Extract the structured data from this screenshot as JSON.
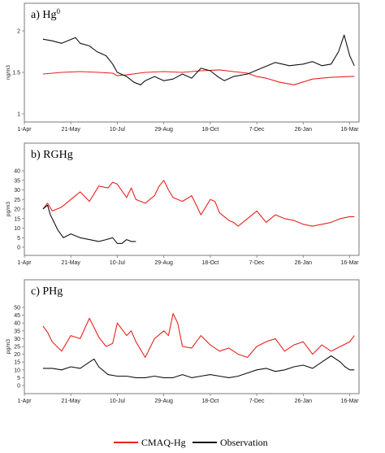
{
  "colors": {
    "model": "#e8231e",
    "observation": "#111111",
    "axis": "#7a7a7a"
  },
  "legend": {
    "model_label": "CMAQ-Hg",
    "observation_label": "Observation"
  },
  "x_tick_labels": [
    "1-Apr",
    "21-May",
    "10-Jul",
    "29-Aug",
    "18-Oct",
    "7-Dec",
    "26-Jan",
    "16-Mar"
  ],
  "chart_data": [
    {
      "type": "line",
      "title": "a) Hg",
      "title_sup": "0",
      "ylabel": "ng/m3",
      "xlim": [
        0,
        360
      ],
      "ylim": [
        1,
        2
      ],
      "yticks": [
        "1",
        "1.5",
        "2"
      ],
      "x_tick_values": [
        0,
        50,
        100,
        150,
        200,
        250,
        300,
        350
      ],
      "series": [
        {
          "name": "CMAQ-Hg",
          "x": [
            20,
            40,
            60,
            80,
            95,
            100,
            110,
            130,
            150,
            170,
            190,
            210,
            225,
            240,
            250,
            260,
            275,
            290,
            310,
            330,
            350,
            355
          ],
          "y": [
            1.48,
            1.5,
            1.51,
            1.5,
            1.49,
            1.46,
            1.47,
            1.5,
            1.51,
            1.5,
            1.52,
            1.53,
            1.51,
            1.49,
            1.45,
            1.43,
            1.38,
            1.35,
            1.42,
            1.44,
            1.45,
            1.45
          ]
        },
        {
          "name": "Observation",
          "x": [
            20,
            30,
            40,
            55,
            60,
            70,
            78,
            88,
            95,
            100,
            110,
            118,
            125,
            130,
            140,
            150,
            160,
            170,
            180,
            190,
            200,
            208,
            215,
            225,
            240,
            255,
            270,
            285,
            300,
            310,
            320,
            330,
            338,
            344,
            350,
            355
          ],
          "y": [
            1.9,
            1.88,
            1.85,
            1.92,
            1.85,
            1.82,
            1.75,
            1.7,
            1.6,
            1.5,
            1.45,
            1.38,
            1.35,
            1.4,
            1.45,
            1.4,
            1.42,
            1.48,
            1.43,
            1.55,
            1.52,
            1.45,
            1.4,
            1.45,
            1.48,
            1.55,
            1.62,
            1.58,
            1.6,
            1.63,
            1.58,
            1.6,
            1.75,
            1.95,
            1.7,
            1.58
          ]
        }
      ]
    },
    {
      "type": "line",
      "title": "b) RGHg",
      "ylabel": "pg/m3",
      "xlim": [
        0,
        360
      ],
      "ylim": [
        0,
        40
      ],
      "yticks": [
        "0",
        "5",
        "10",
        "15",
        "20",
        "25",
        "30",
        "35",
        "40"
      ],
      "x_tick_values": [
        0,
        50,
        100,
        150,
        200,
        250,
        300,
        350
      ],
      "series": [
        {
          "name": "CMAQ-Hg",
          "x": [
            20,
            25,
            30,
            40,
            50,
            60,
            70,
            80,
            90,
            95,
            100,
            110,
            115,
            120,
            130,
            140,
            145,
            150,
            155,
            160,
            170,
            180,
            190,
            200,
            205,
            210,
            220,
            225,
            230,
            240,
            250,
            260,
            270,
            280,
            290,
            300,
            310,
            320,
            330,
            340,
            350,
            355
          ],
          "y": [
            20,
            23,
            19,
            21,
            25,
            29,
            24,
            32,
            31,
            34,
            33,
            26,
            31,
            25,
            23,
            27,
            32,
            35,
            30,
            26,
            24,
            27,
            17,
            25,
            24,
            18,
            14,
            13,
            11,
            15,
            19,
            13,
            17,
            15,
            14,
            12,
            11,
            12,
            13,
            15,
            16,
            16
          ]
        },
        {
          "name": "Observation",
          "x": [
            20,
            25,
            28,
            32,
            36,
            42,
            50,
            60,
            70,
            80,
            88,
            95,
            100,
            105,
            110,
            115,
            120
          ],
          "y": [
            20,
            22,
            17,
            13,
            9,
            5,
            7,
            5,
            4,
            3,
            4,
            5,
            2,
            2,
            4,
            3,
            3
          ]
        }
      ]
    },
    {
      "type": "line",
      "title": "c) PHg",
      "ylabel": "pg/m3",
      "xlim": [
        0,
        360
      ],
      "ylim": [
        0,
        50
      ],
      "yticks": [
        "0",
        "5",
        "10",
        "15",
        "20",
        "25",
        "30",
        "35",
        "40",
        "45",
        "50"
      ],
      "x_tick_values": [
        0,
        50,
        100,
        150,
        200,
        250,
        300,
        350
      ],
      "series": [
        {
          "name": "CMAQ-Hg",
          "x": [
            20,
            25,
            30,
            40,
            50,
            60,
            70,
            80,
            88,
            95,
            100,
            110,
            115,
            120,
            130,
            140,
            150,
            155,
            160,
            165,
            170,
            180,
            190,
            200,
            210,
            220,
            230,
            240,
            250,
            260,
            270,
            280,
            290,
            300,
            310,
            320,
            330,
            340,
            350,
            355
          ],
          "y": [
            38,
            34,
            28,
            22,
            32,
            30,
            43,
            31,
            25,
            27,
            40,
            32,
            35,
            28,
            18,
            30,
            35,
            32,
            46,
            40,
            25,
            24,
            32,
            26,
            22,
            24,
            20,
            18,
            25,
            28,
            30,
            22,
            26,
            28,
            20,
            26,
            22,
            25,
            28,
            32
          ]
        },
        {
          "name": "Observation",
          "x": [
            20,
            30,
            40,
            50,
            60,
            70,
            75,
            80,
            90,
            100,
            110,
            120,
            130,
            140,
            150,
            160,
            170,
            180,
            190,
            200,
            210,
            220,
            230,
            240,
            250,
            260,
            270,
            280,
            290,
            300,
            310,
            320,
            330,
            340,
            345,
            350,
            355
          ],
          "y": [
            11,
            11,
            10,
            12,
            11,
            15,
            17,
            12,
            7,
            6,
            6,
            5,
            5,
            6,
            5,
            5,
            7,
            5,
            6,
            7,
            6,
            5,
            6,
            8,
            10,
            11,
            9,
            10,
            12,
            13,
            11,
            15,
            19,
            15,
            12,
            10,
            10
          ]
        }
      ]
    }
  ]
}
